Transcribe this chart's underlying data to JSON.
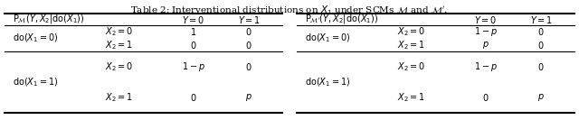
{
  "title": "Table 2: Interventional distributions on $X_1$ under SCMs $\\mathcal{M}$ and $\\mathcal{M}^{\\prime}$.",
  "figsize": [
    6.4,
    1.33
  ],
  "dpi": 100,
  "bg_color": "#ffffff",
  "left_header": "$\\mathrm{P}_{\\mathcal{M}}(Y, X_2|\\mathrm{do}(X_1))$",
  "right_header": "$\\mathrm{P}_{\\mathcal{M}^{\\prime}}(Y, X_2|\\mathrm{do}(X_1))$",
  "col_headers": [
    "$Y=0$",
    "$Y=1$"
  ],
  "left_rows": [
    {
      "row_label": "$\\mathrm{do}(X_1=0)$",
      "sub": [
        [
          "$X_2=0$",
          "$1$",
          "$0$"
        ],
        [
          "$X_2=1$",
          "$0$",
          "$0$"
        ]
      ]
    },
    {
      "row_label": "$\\mathrm{do}(X_1=1)$",
      "sub": [
        [
          "$X_2=0$",
          "$1-p$",
          "$0$"
        ],
        [
          "$X_2=1$",
          "$0$",
          "$p$"
        ]
      ]
    }
  ],
  "right_rows": [
    {
      "row_label": "$\\mathrm{do}(X_1=0)$",
      "sub": [
        [
          "$X_2=0$",
          "$1-p$",
          "$0$"
        ],
        [
          "$X_2=1$",
          "$p$",
          "$0$"
        ]
      ]
    },
    {
      "row_label": "$\\mathrm{do}(X_1=1)$",
      "sub": [
        [
          "$X_2=0$",
          "$1-p$",
          "$0$"
        ],
        [
          "$X_2=1$",
          "$0$",
          "$p$"
        ]
      ]
    }
  ],
  "font_size": 7.0,
  "title_font_size": 7.5
}
